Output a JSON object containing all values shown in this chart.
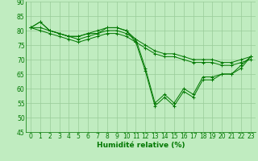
{
  "title": "",
  "xlabel": "Humidité relative (%)",
  "ylabel": "",
  "bg_color": "#c0ecc0",
  "grid_color": "#99cc99",
  "line_color": "#007700",
  "marker": "+",
  "xlim": [
    -0.5,
    23.5
  ],
  "ylim": [
    45,
    90
  ],
  "yticks": [
    45,
    50,
    55,
    60,
    65,
    70,
    75,
    80,
    85,
    90
  ],
  "xticks": [
    0,
    1,
    2,
    3,
    4,
    5,
    6,
    7,
    8,
    9,
    10,
    11,
    12,
    13,
    14,
    15,
    16,
    17,
    18,
    19,
    20,
    21,
    22,
    23
  ],
  "series": [
    [
      81,
      83,
      80,
      79,
      78,
      78,
      79,
      80,
      81,
      81,
      80,
      76,
      66,
      54,
      57,
      54,
      59,
      57,
      63,
      63,
      65,
      65,
      67,
      71
    ],
    [
      81,
      83,
      80,
      79,
      78,
      78,
      79,
      79,
      81,
      81,
      80,
      77,
      67,
      55,
      58,
      55,
      60,
      58,
      64,
      64,
      65,
      65,
      68,
      71
    ],
    [
      81,
      81,
      80,
      79,
      78,
      77,
      78,
      79,
      80,
      80,
      79,
      77,
      75,
      73,
      72,
      72,
      71,
      70,
      70,
      70,
      69,
      69,
      70,
      71
    ],
    [
      81,
      80,
      79,
      78,
      77,
      76,
      77,
      78,
      79,
      79,
      78,
      76,
      74,
      72,
      71,
      71,
      70,
      69,
      69,
      69,
      68,
      68,
      69,
      70
    ]
  ]
}
